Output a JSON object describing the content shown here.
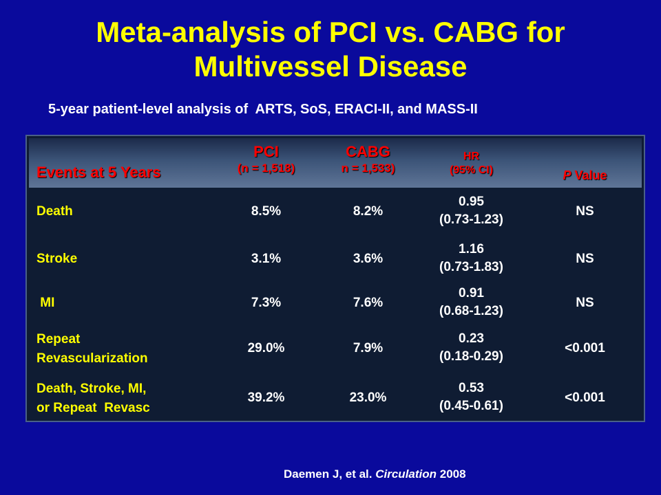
{
  "slide": {
    "title_line1": "Meta-analysis of PCI vs. CABG for",
    "title_line2": "Multivessel Disease",
    "subtitle": "5-year patient-level analysis of  ARTS, SoS, ERACI-II, and MASS-II",
    "citation_authors": "Daemen J, et al. ",
    "citation_journal": "Circulation",
    "citation_year": " 2008"
  },
  "table": {
    "headers": {
      "events": "Events at 5 Years",
      "pci": "PCI",
      "pci_n": "(n = 1,518)",
      "cabg": "CABG",
      "cabg_n": "n = 1,533)",
      "hr": "HR",
      "hr_ci": "(95% CI)",
      "p_italic": "P",
      "p_rest": " Value"
    },
    "rows": [
      {
        "label1": "Death",
        "label2": "",
        "pci": "8.5%",
        "cabg": "8.2%",
        "hr": "0.95",
        "ci": "(0.73-1.23)",
        "p": "NS"
      },
      {
        "label1": "Stroke",
        "label2": "",
        "pci": "3.1%",
        "cabg": "3.6%",
        "hr": "1.16",
        "ci": "(0.73-1.83)",
        "p": "NS"
      },
      {
        "label1": " MI",
        "label2": "",
        "pci": "7.3%",
        "cabg": "7.6%",
        "hr": "0.91",
        "ci": "(0.68-1.23)",
        "p": "NS"
      },
      {
        "label1": "Repeat",
        "label2": "Revascularization",
        "pci": "29.0%",
        "cabg": "7.9%",
        "hr": "0.23",
        "ci": "(0.18-0.29)",
        "p": "<0.001"
      },
      {
        "label1": "Death, Stroke, MI,",
        "label2": "or Repeat  Revasc",
        "pci": "39.2%",
        "cabg": "23.0%",
        "hr": "0.53",
        "ci": "(0.45-0.61)",
        "p": "<0.001"
      }
    ]
  },
  "colors": {
    "background": "#0a0a9c",
    "title": "#ffff00",
    "header_text": "#ff0000",
    "row_label": "#ffff00",
    "cell_text": "#ffffff"
  }
}
